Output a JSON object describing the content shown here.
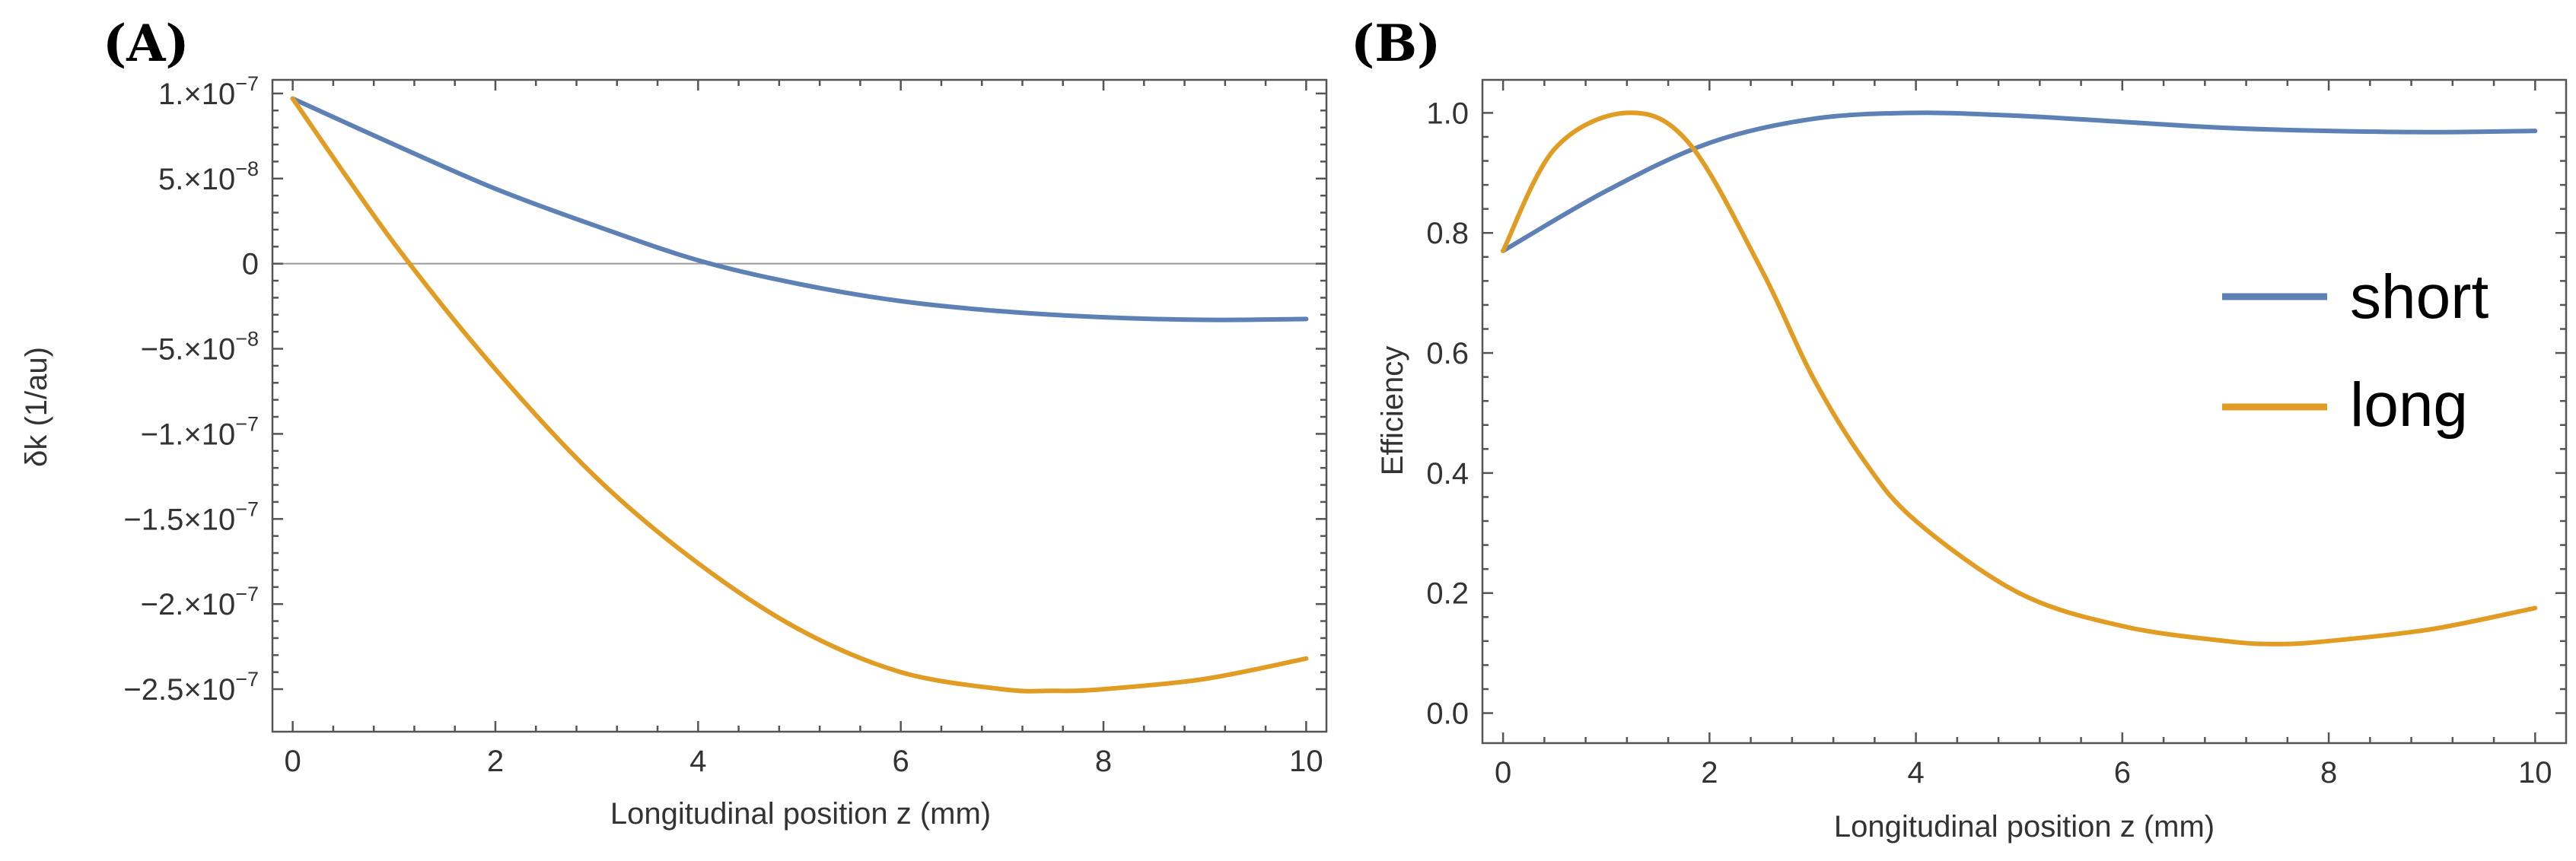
{
  "chart_data": [
    {
      "type": "line",
      "panel": "(A)",
      "xlabel": "Longitudinal position z (mm)",
      "ylabel": "δk (1/au)",
      "xlim": [
        -0.2,
        10.2
      ],
      "ylim": [
        -2.75e-07,
        1.08e-07
      ],
      "xticks": [
        0,
        2,
        4,
        6,
        8,
        10
      ],
      "xtick_labels": [
        "0",
        "2",
        "4",
        "6",
        "8",
        "10"
      ],
      "yticks": [
        1e-07,
        5e-08,
        0,
        -5e-08,
        -1e-07,
        -1.5e-07,
        -2e-07,
        -2.5e-07
      ],
      "ytick_labels": [
        {
          "mant": "1.×10",
          "exp": "−7"
        },
        {
          "mant": "5.×10",
          "exp": "−8"
        },
        {
          "mant": "0",
          "exp": ""
        },
        {
          "mant": "−5.×10",
          "exp": "−8"
        },
        {
          "mant": "−1.×10",
          "exp": "−7"
        },
        {
          "mant": "−1.5×10",
          "exp": "−7"
        },
        {
          "mant": "−2.×10",
          "exp": "−7"
        },
        {
          "mant": "−2.5×10",
          "exp": "−7"
        }
      ],
      "zero_line": true,
      "series": [
        {
          "name": "short",
          "color": "#5e81b5",
          "x": [
            0,
            1,
            2,
            3,
            4,
            5,
            6,
            7,
            8,
            9,
            10
          ],
          "y": [
            9.7e-08,
            7e-08,
            4.4e-08,
            2.2e-08,
            2e-09,
            -1.2e-08,
            -2.2e-08,
            -2.8e-08,
            -3.15e-08,
            -3.3e-08,
            -3.25e-08
          ]
        },
        {
          "name": "long",
          "color": "#e19c24",
          "x": [
            0,
            1,
            2,
            3,
            4,
            5,
            6,
            7,
            7.5,
            8,
            9,
            10
          ],
          "y": [
            9.7e-08,
            1.2e-08,
            -6.2e-08,
            -1.26e-07,
            -1.76e-07,
            -2.15e-07,
            -2.4e-07,
            -2.5e-07,
            -2.51e-07,
            -2.5e-07,
            -2.44e-07,
            -2.32e-07
          ]
        }
      ]
    },
    {
      "type": "line",
      "panel": "(B)",
      "xlabel": "Longitudinal position z (mm)",
      "ylabel": "Efficiency",
      "xlim": [
        -0.2,
        10.3
      ],
      "ylim": [
        -0.05,
        1.055
      ],
      "xticks": [
        0,
        2,
        4,
        6,
        8,
        10
      ],
      "xtick_labels": [
        "0",
        "2",
        "4",
        "6",
        "8",
        "10"
      ],
      "yticks": [
        0.0,
        0.2,
        0.4,
        0.6,
        0.8,
        1.0
      ],
      "ytick_labels": [
        "0.0",
        "0.2",
        "0.4",
        "0.6",
        "0.8",
        "1.0"
      ],
      "legend": {
        "position": "right",
        "entries": [
          "short",
          "long"
        ]
      },
      "series": [
        {
          "name": "short",
          "color": "#5e81b5",
          "x": [
            0,
            1,
            2,
            3,
            4,
            5,
            6,
            7,
            8,
            9,
            10
          ],
          "y": [
            0.77,
            0.87,
            0.95,
            0.99,
            1.0,
            0.995,
            0.985,
            0.975,
            0.97,
            0.968,
            0.97
          ]
        },
        {
          "name": "long",
          "color": "#e19c24",
          "x": [
            0,
            0.5,
            1.2,
            1.8,
            2.5,
            3,
            3.5,
            4,
            5,
            6,
            7,
            7.5,
            8,
            9,
            10
          ],
          "y": [
            0.77,
            0.94,
            1.0,
            0.95,
            0.74,
            0.56,
            0.42,
            0.32,
            0.2,
            0.145,
            0.12,
            0.115,
            0.12,
            0.14,
            0.175
          ]
        }
      ]
    }
  ]
}
